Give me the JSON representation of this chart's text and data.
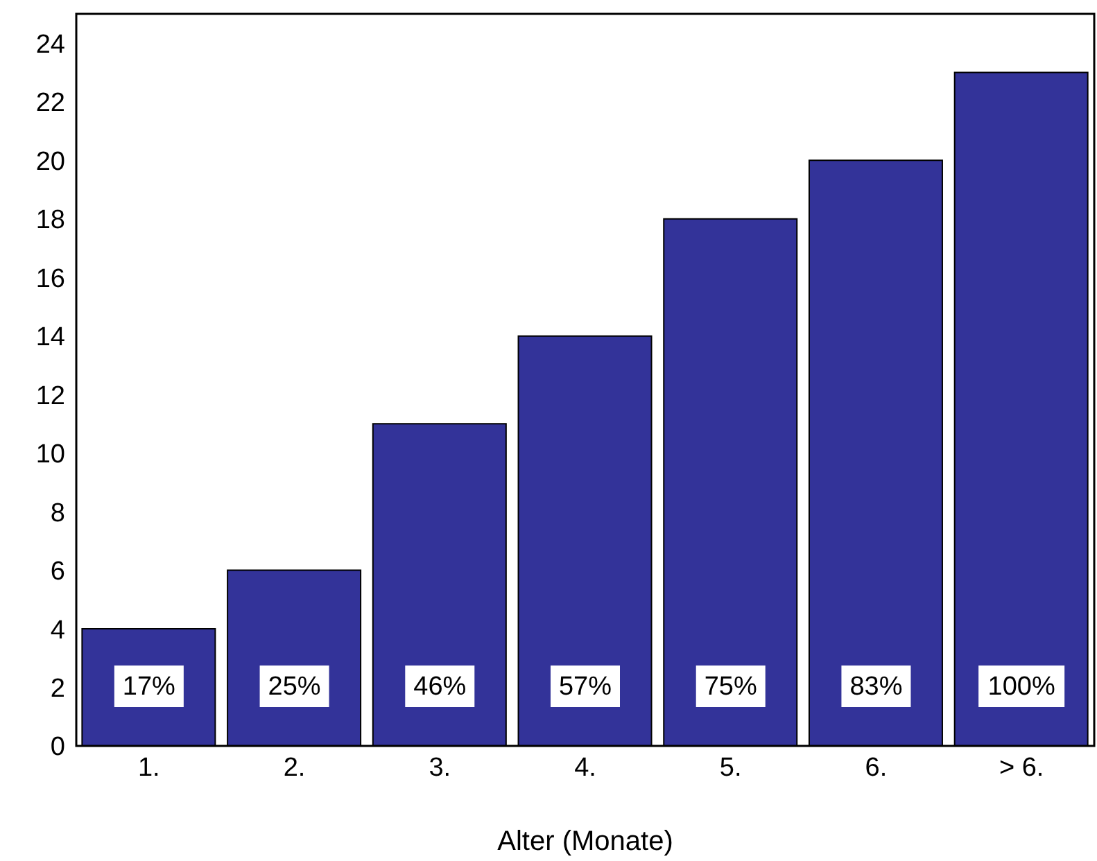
{
  "chart_data": {
    "type": "bar",
    "xlabel": "Alter (Monate)",
    "categories": [
      "1.",
      "2.",
      "3.",
      "4.",
      "5.",
      "6.",
      "> 6."
    ],
    "values": [
      4,
      6,
      11,
      14,
      18,
      20,
      23
    ],
    "annotations": [
      "17%",
      "25%",
      "46%",
      "57%",
      "75%",
      "83%",
      "100%"
    ],
    "color": "#333399",
    "ylim": [
      0,
      25
    ],
    "yticks": [
      0,
      2,
      4,
      6,
      8,
      10,
      12,
      14,
      16,
      18,
      20,
      22,
      24
    ],
    "grid": false,
    "legend": false
  }
}
